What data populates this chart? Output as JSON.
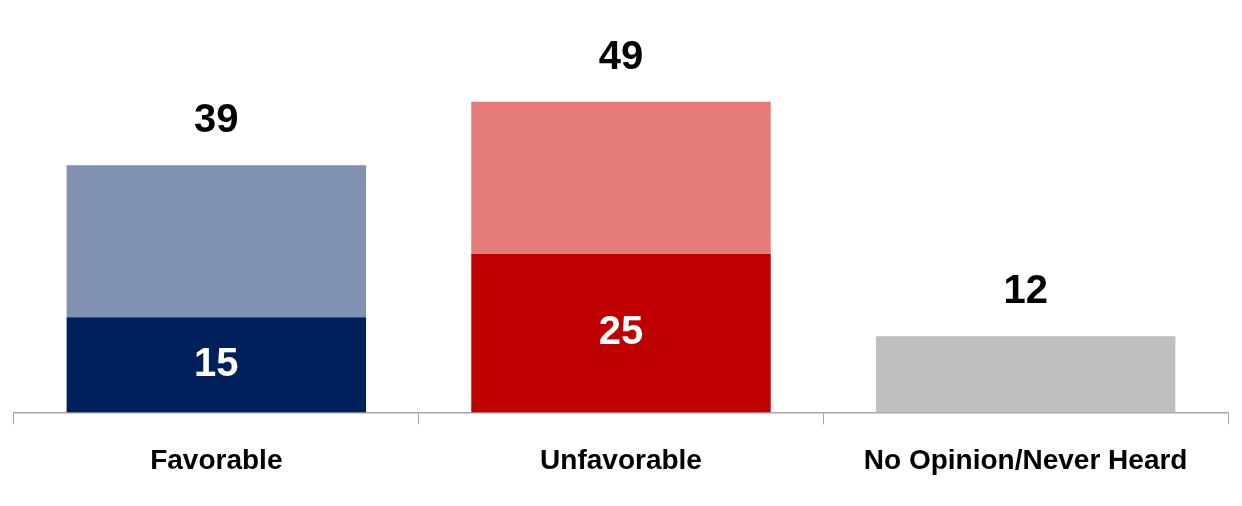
{
  "chart_data": {
    "type": "bar",
    "stacked": true,
    "legend": false,
    "categories": [
      "Favorable",
      "Unfavorable",
      "No Opinion/Never Heard"
    ],
    "series": [
      {
        "colors": [
          "#00205b",
          "#c00000",
          "#bfbfbf"
        ],
        "values": [
          15,
          25,
          12
        ],
        "value_labels": [
          "15",
          "25",
          null
        ]
      },
      {
        "colors": [
          "#8091b1",
          "#e57b78",
          "#bfbfbf"
        ],
        "values": [
          24,
          24,
          null
        ]
      }
    ],
    "totals": [
      "39",
      "49",
      "12"
    ]
  }
}
